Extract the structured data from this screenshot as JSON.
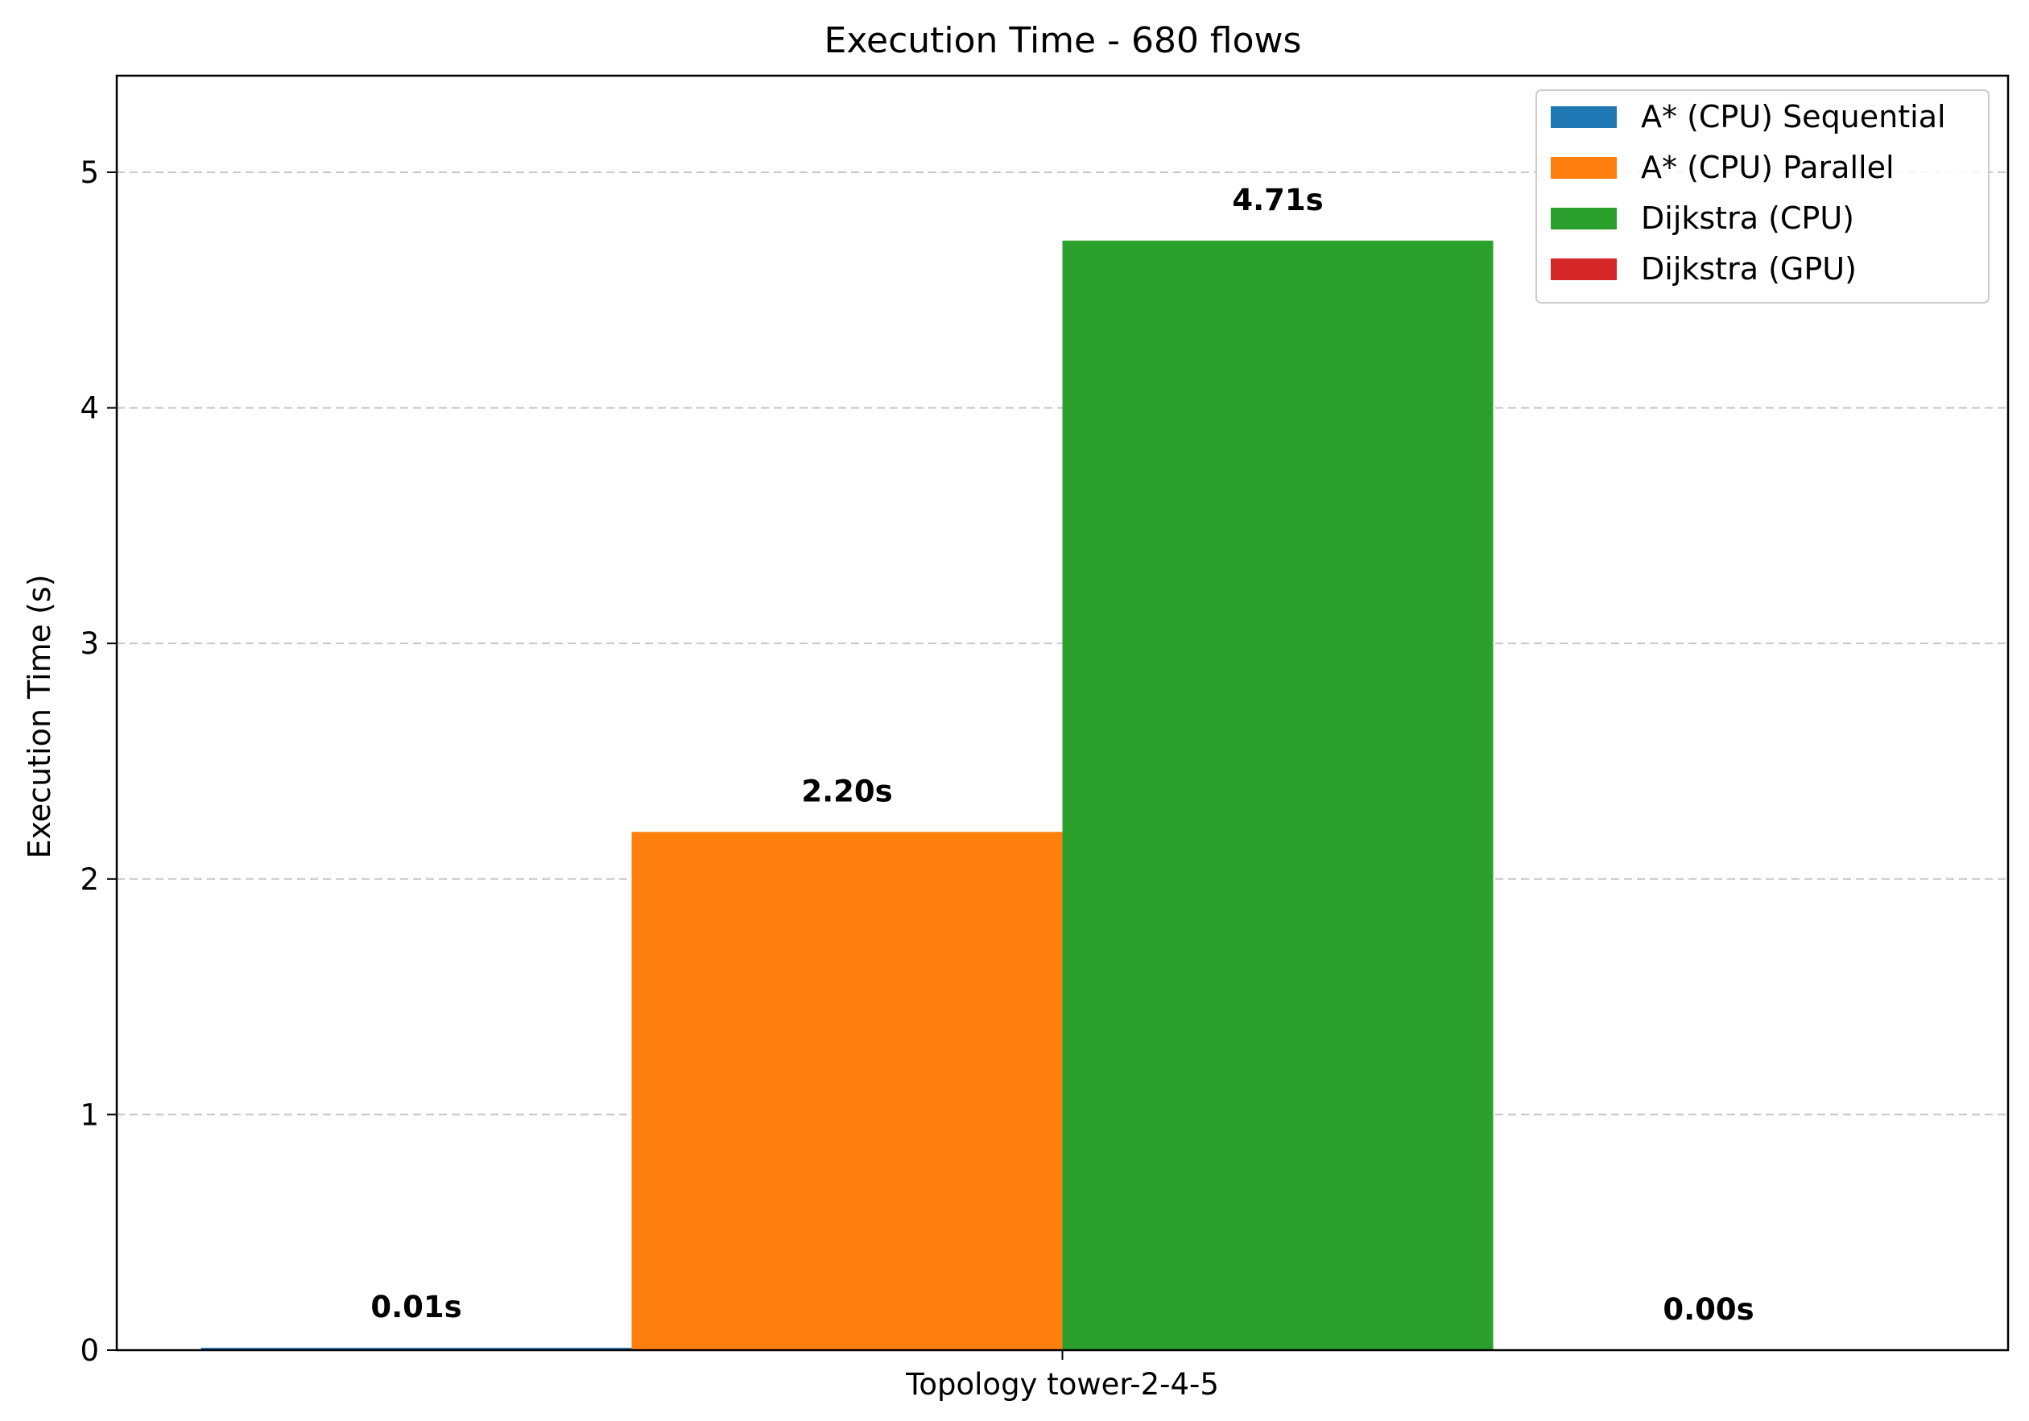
{
  "chart_data": {
    "type": "bar",
    "title": "Execution Time - 680 flows",
    "xlabel": "",
    "ylabel": "Execution Time (s)",
    "categories": [
      "Topology tower-2-4-5"
    ],
    "series": [
      {
        "name": "A* (CPU) Sequential",
        "values": [
          0.01
        ],
        "label": "0.01s",
        "color": "#1f77b4"
      },
      {
        "name": "A* (CPU) Parallel",
        "values": [
          2.2
        ],
        "label": "2.20s",
        "color": "#ff7f0e"
      },
      {
        "name": "Dijkstra (CPU)",
        "values": [
          4.71
        ],
        "label": "4.71s",
        "color": "#2ca02c"
      },
      {
        "name": "Dijkstra (GPU)",
        "values": [
          0.0
        ],
        "label": "0.00s",
        "color": "#d62728"
      }
    ],
    "ylim": [
      0,
      5.41
    ],
    "yticks": [
      0,
      1,
      2,
      3,
      4,
      5
    ],
    "grid": "y-dashed",
    "legend": "top-right"
  }
}
